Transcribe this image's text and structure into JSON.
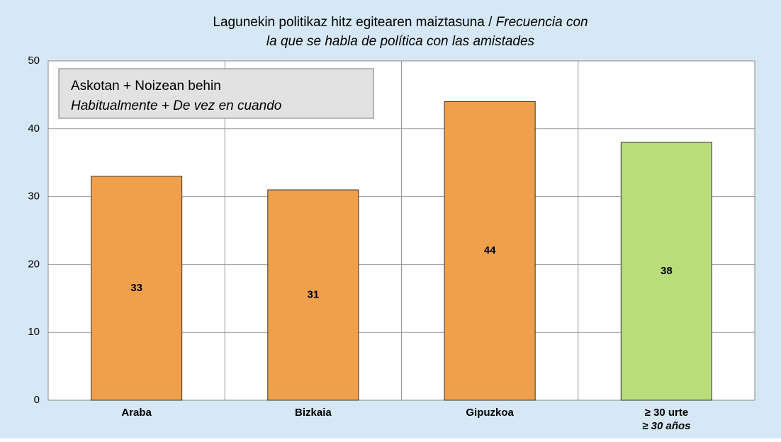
{
  "chart_data": {
    "type": "bar",
    "title": "Lagunekin politikaz hitz egitearen maiztasuna /",
    "subtitle": [
      "Frecuencia con",
      "la que se habla de política con las amistades"
    ],
    "annotation": [
      "Askotan + Noizean behin",
      "Habitualmente + De vez en cuando"
    ],
    "categories": [
      "Araba",
      "Bizkaia",
      "Gipuzkoa",
      [
        "≥ 30 urte",
        "≥ 30 años"
      ]
    ],
    "values": [
      33,
      31,
      44,
      38
    ],
    "colors": [
      "#F0A04B",
      "#F0A04B",
      "#F0A04B",
      "#B8DD7A"
    ],
    "ylim": [
      0,
      50
    ],
    "yticks": [
      0,
      10,
      20,
      30,
      40,
      50
    ],
    "grid": true
  }
}
